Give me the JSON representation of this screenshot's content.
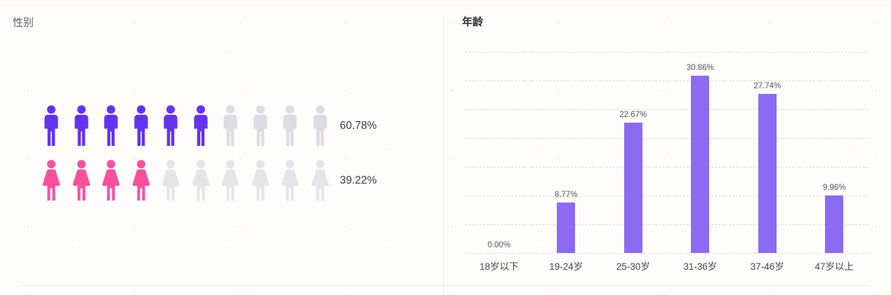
{
  "chart_data": [
    {
      "type": "pictograph",
      "title": "性别",
      "series": [
        {
          "name": "male",
          "icon": "male-person-icon",
          "value": 60.78,
          "label": "60.78%",
          "icons_total": 10,
          "icons_filled": 6,
          "fill_color": "#6433f0",
          "empty_color": "#dcdce2"
        },
        {
          "name": "female",
          "icon": "female-person-icon",
          "value": 39.22,
          "label": "39.22%",
          "icons_total": 10,
          "icons_filled": 4,
          "fill_color": "#f7519e",
          "empty_color": "#e5e5e9"
        }
      ]
    },
    {
      "type": "bar",
      "title": "年龄",
      "categories": [
        "18岁以下",
        "19-24岁",
        "25-30岁",
        "31-36岁",
        "37-46岁",
        "47岁以上"
      ],
      "values": [
        0.0,
        8.77,
        22.67,
        30.86,
        27.74,
        9.96
      ],
      "value_labels": [
        "0.00%",
        "8.77%",
        "22.67%",
        "30.86%",
        "27.74%",
        "9.96%"
      ],
      "xlabel": "",
      "ylabel": "",
      "ylim": [
        0,
        35
      ],
      "grid_step": 5,
      "grid": "horizontal-dashed",
      "legend": "none",
      "bar_color": "#8c6bf2",
      "gridline_color": "#dcdcdc"
    }
  ]
}
